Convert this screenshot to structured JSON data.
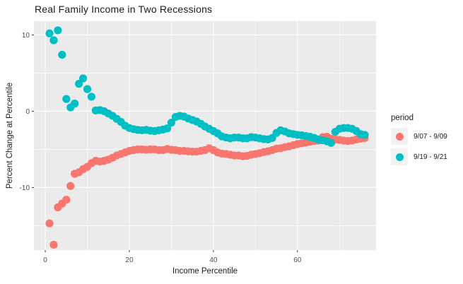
{
  "colors": {
    "series_907": "#F8766D",
    "series_919": "#00BFC4",
    "panel_background": "#EBEBEB",
    "gridline": "#FFFFFF",
    "tick_label_text": "#4D4D4D",
    "axis_title_text": "#1a1a1a",
    "legend_key_background": "#F2F2F2",
    "tick_mark": "#333333"
  },
  "chart_data": {
    "type": "scatter",
    "title": "Real Family Income in Two Recessions",
    "xlabel": "Income Percentile",
    "ylabel": "Percent Change at Percentile",
    "legend_title": "period",
    "legend_position": "right",
    "grid": "ggplot gray panel, white major and minor gridlines",
    "x_ticks": [
      0,
      20,
      40,
      60
    ],
    "x_minor_gridlines": [
      10,
      30,
      50,
      70
    ],
    "y_ticks": [
      10,
      0,
      -10
    ],
    "y_minor_gridlines": [
      5,
      -5,
      -15
    ],
    "xlim": [
      -2.7,
      78.7
    ],
    "ylim": [
      -18.2,
      11.8
    ],
    "x": [
      1,
      2,
      3,
      4,
      5,
      6,
      7,
      8,
      9,
      10,
      11,
      12,
      13,
      14,
      15,
      16,
      17,
      18,
      19,
      20,
      21,
      22,
      23,
      24,
      25,
      26,
      27,
      28,
      29,
      30,
      31,
      32,
      33,
      34,
      35,
      36,
      37,
      38,
      39,
      40,
      41,
      42,
      43,
      44,
      45,
      46,
      47,
      48,
      49,
      50,
      51,
      52,
      53,
      54,
      55,
      56,
      57,
      58,
      59,
      60,
      61,
      62,
      63,
      64,
      65,
      66,
      67,
      68,
      69,
      70,
      71,
      72,
      73,
      74,
      75,
      76
    ],
    "series": [
      {
        "name": "9/07 - 9/09",
        "color": "#F8766D",
        "values": [
          -14.7,
          -17.5,
          -12.6,
          -12.1,
          -11.6,
          -9.8,
          -8.2,
          -8.0,
          -7.6,
          -7.3,
          -6.8,
          -6.5,
          -6.6,
          -6.5,
          -6.35,
          -6.1,
          -5.8,
          -5.6,
          -5.4,
          -5.2,
          -5.1,
          -5.0,
          -5.0,
          -5.05,
          -5.0,
          -5.0,
          -5.1,
          -5.1,
          -4.95,
          -5.05,
          -5.1,
          -5.2,
          -5.2,
          -5.25,
          -5.3,
          -5.3,
          -5.2,
          -5.1,
          -4.85,
          -5.1,
          -5.4,
          -5.55,
          -5.6,
          -5.7,
          -5.8,
          -5.8,
          -5.9,
          -5.85,
          -5.7,
          -5.6,
          -5.5,
          -5.35,
          -5.25,
          -5.1,
          -4.9,
          -4.85,
          -4.7,
          -4.6,
          -4.45,
          -4.3,
          -4.2,
          -4.1,
          -4.0,
          -3.9,
          -3.85,
          -3.4,
          -3.35,
          -3.6,
          -3.7,
          -3.75,
          -3.85,
          -3.9,
          -3.85,
          -3.7,
          -3.6,
          -3.5
        ]
      },
      {
        "name": "9/19 - 9/21",
        "color": "#00BFC4",
        "values": [
          10.2,
          9.3,
          10.6,
          7.4,
          1.6,
          0.5,
          1.0,
          3.6,
          4.3,
          2.9,
          1.9,
          0.1,
          0.15,
          0.0,
          -0.3,
          -0.6,
          -1.0,
          -1.4,
          -1.9,
          -2.2,
          -2.35,
          -2.45,
          -2.5,
          -2.45,
          -2.55,
          -2.6,
          -2.5,
          -2.4,
          -2.25,
          -1.5,
          -0.75,
          -0.6,
          -0.7,
          -0.95,
          -1.15,
          -1.35,
          -1.65,
          -2.0,
          -2.3,
          -2.6,
          -2.9,
          -3.3,
          -3.45,
          -3.55,
          -3.45,
          -3.45,
          -3.55,
          -3.55,
          -3.4,
          -3.45,
          -3.55,
          -3.65,
          -3.7,
          -3.5,
          -2.85,
          -2.5,
          -2.65,
          -2.9,
          -3.0,
          -3.1,
          -3.15,
          -3.25,
          -3.35,
          -3.5,
          -3.7,
          -3.8,
          -3.95,
          -4.15,
          -2.7,
          -2.3,
          -2.2,
          -2.2,
          -2.3,
          -2.6,
          -3.0,
          -3.1
        ]
      }
    ]
  }
}
